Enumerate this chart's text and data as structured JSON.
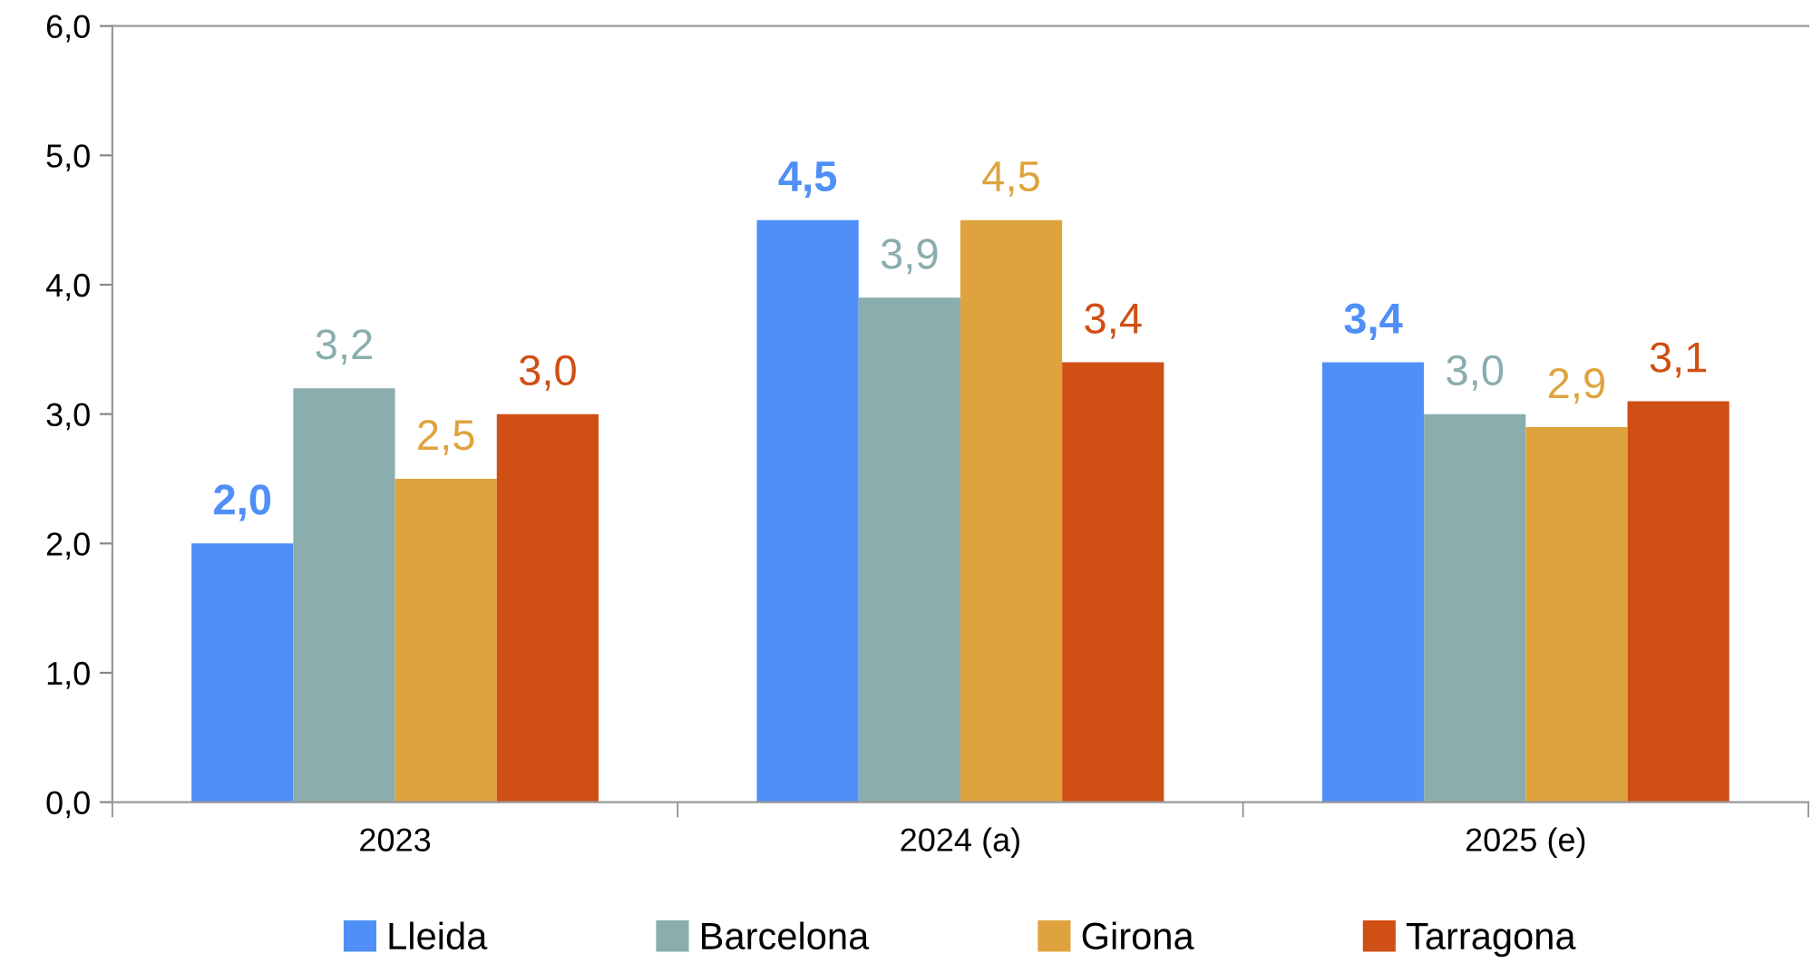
{
  "chart_data": {
    "type": "bar",
    "categories": [
      "2023",
      "2024 (a)",
      "2025 (e)"
    ],
    "series": [
      {
        "name": "Lleida",
        "color": "#4f8ff7",
        "values": [
          2.0,
          4.5,
          3.4
        ],
        "value_labels": [
          "2,0",
          "4,5",
          "3,4"
        ]
      },
      {
        "name": "Barcelona",
        "color": "#8aadad",
        "values": [
          3.2,
          3.9,
          3.0
        ],
        "value_labels": [
          "3,2",
          "3,9",
          "3,0"
        ]
      },
      {
        "name": "Girona",
        "color": "#dfa33e",
        "values": [
          2.5,
          4.5,
          2.9
        ],
        "value_labels": [
          "2,5",
          "4,5",
          "2,9"
        ]
      },
      {
        "name": "Tarragona",
        "color": "#d04f14",
        "values": [
          3.0,
          3.4,
          3.1
        ],
        "value_labels": [
          "3,0",
          "3,4",
          "3,1"
        ]
      }
    ],
    "ylim": [
      0,
      6
    ],
    "yticks": [
      {
        "value": 0,
        "label": "0,0"
      },
      {
        "value": 1,
        "label": "1,0"
      },
      {
        "value": 2,
        "label": "2,0"
      },
      {
        "value": 3,
        "label": "3,0"
      },
      {
        "value": 4,
        "label": "4,0"
      },
      {
        "value": 5,
        "label": "5,0"
      },
      {
        "value": 6,
        "label": "6,0"
      }
    ],
    "legend": "bottom",
    "grid": false
  }
}
